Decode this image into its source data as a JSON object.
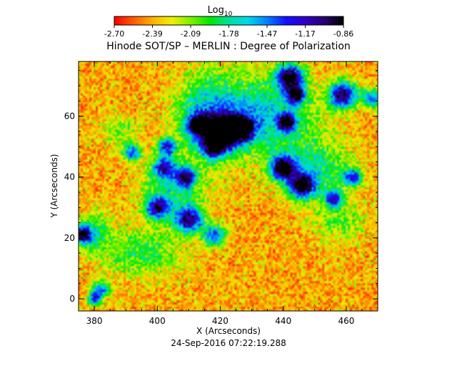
{
  "chart_data": {
    "type": "heatmap",
    "title": "Hinode SOT/SP – MERLIN : Degree of Polarization",
    "xlabel": "X (Arcseconds)",
    "ylabel": "Y (Arcseconds)",
    "timestamp": "24-Sep-2016 07:22:19.288",
    "colorbar": {
      "label": "Log",
      "label_subscript": "10",
      "range": [
        -2.7,
        -0.86
      ],
      "ticks": [
        "-2.70",
        "-2.39",
        "-2.09",
        "-1.78",
        "-1.47",
        "-1.17",
        "-0.86"
      ],
      "colormap": [
        "#ff0000",
        "#ff5a00",
        "#ffb000",
        "#f0f000",
        "#7fef00",
        "#00e800",
        "#00e0a0",
        "#00d8e8",
        "#0080ff",
        "#1010ff",
        "#3000c8",
        "#280070",
        "#000000"
      ]
    },
    "xlim": [
      375,
      470
    ],
    "ylim": [
      -4,
      78
    ],
    "x_ticks": [
      "380",
      "400",
      "420",
      "440",
      "460"
    ],
    "y_ticks": [
      "0",
      "20",
      "40",
      "60"
    ],
    "features": [
      {
        "x": 376,
        "y": 21,
        "strength": 0.75,
        "r": 2.0
      },
      {
        "x": 421,
        "y": 55,
        "strength": 0.9,
        "r": 3.8
      },
      {
        "x": 427,
        "y": 56,
        "strength": 0.8,
        "r": 2.5
      },
      {
        "x": 413,
        "y": 57,
        "strength": 0.75,
        "r": 2.4
      },
      {
        "x": 418,
        "y": 50,
        "strength": 0.7,
        "r": 2.5
      },
      {
        "x": 440,
        "y": 43,
        "strength": 0.8,
        "r": 2.8
      },
      {
        "x": 446,
        "y": 37,
        "strength": 0.75,
        "r": 2.8
      },
      {
        "x": 442,
        "y": 73,
        "strength": 0.8,
        "r": 3.0
      },
      {
        "x": 444,
        "y": 67,
        "strength": 0.7,
        "r": 2.2
      },
      {
        "x": 459,
        "y": 67,
        "strength": 0.8,
        "r": 3.0
      },
      {
        "x": 441,
        "y": 58,
        "strength": 0.7,
        "r": 2.0
      },
      {
        "x": 410,
        "y": 26,
        "strength": 0.7,
        "r": 3.0
      },
      {
        "x": 400,
        "y": 30,
        "strength": 0.65,
        "r": 2.5
      },
      {
        "x": 402,
        "y": 43,
        "strength": 0.6,
        "r": 2.5
      },
      {
        "x": 409,
        "y": 40,
        "strength": 0.65,
        "r": 2.2
      },
      {
        "x": 403,
        "y": 50,
        "strength": 0.6,
        "r": 2.0
      },
      {
        "x": 392,
        "y": 48,
        "strength": 0.55,
        "r": 2.0
      },
      {
        "x": 418,
        "y": 21,
        "strength": 0.55,
        "r": 2.5
      },
      {
        "x": 382,
        "y": 3,
        "strength": 0.5,
        "r": 2.0
      },
      {
        "x": 380,
        "y": 0,
        "strength": 0.55,
        "r": 1.5
      },
      {
        "x": 468,
        "y": 66,
        "strength": 0.55,
        "r": 2.0
      },
      {
        "x": 456,
        "y": 33,
        "strength": 0.6,
        "r": 2.0
      },
      {
        "x": 462,
        "y": 40,
        "strength": 0.55,
        "r": 2.0
      }
    ],
    "regions": [
      {
        "x": 432,
        "y": 60,
        "rx": 22,
        "ry": 16,
        "strength": 0.42
      },
      {
        "x": 415,
        "y": 60,
        "rx": 12,
        "ry": 18,
        "strength": 0.3
      },
      {
        "x": 450,
        "y": 42,
        "rx": 14,
        "ry": 12,
        "strength": 0.32
      },
      {
        "x": 405,
        "y": 35,
        "rx": 12,
        "ry": 12,
        "strength": 0.3
      },
      {
        "x": 395,
        "y": 15,
        "rx": 16,
        "ry": 10,
        "strength": 0.26
      },
      {
        "x": 380,
        "y": 22,
        "rx": 6,
        "ry": 8,
        "strength": 0.3
      },
      {
        "x": 388,
        "y": 55,
        "rx": 8,
        "ry": 6,
        "strength": 0.18
      },
      {
        "x": 458,
        "y": 25,
        "rx": 10,
        "ry": 8,
        "strength": 0.2
      }
    ]
  }
}
